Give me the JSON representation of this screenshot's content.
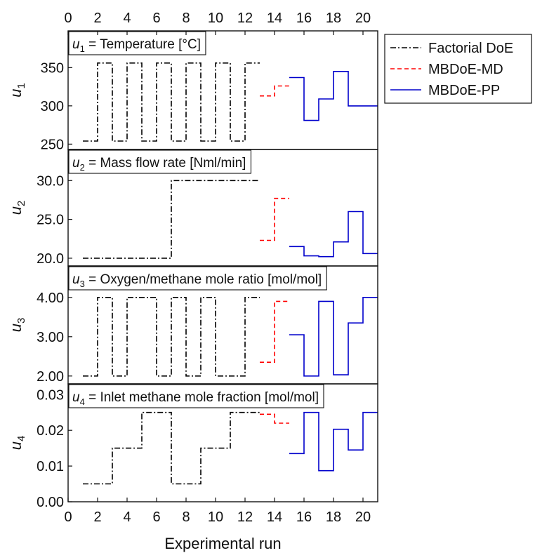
{
  "chart_data": {
    "type": "line",
    "step": "post",
    "xlabel": "Experimental run",
    "xlim": [
      0,
      21
    ],
    "xticks": [
      0,
      2,
      4,
      6,
      8,
      10,
      12,
      14,
      16,
      18,
      20
    ],
    "legend": {
      "placement": "outside-top-right",
      "entries": [
        {
          "name": "Factorial DoE",
          "color": "#000000",
          "dash": "dashdot"
        },
        {
          "name": "MBDoE-MD",
          "color": "#ff0000",
          "dash": "dashed"
        },
        {
          "name": "MBDoE-PP",
          "color": "#0000cc",
          "dash": "solid"
        }
      ]
    },
    "panels": [
      {
        "id": "u1",
        "title_var": "u",
        "title_sub": "1",
        "title_rest": " = Temperature [°C]",
        "ylabel": "u",
        "ylabel_sub": "1",
        "ylim": [
          243,
          398
        ],
        "yticks": [
          250,
          300,
          350
        ],
        "ytick_labels": [
          "250",
          "300",
          "350"
        ],
        "series": [
          {
            "name": "Factorial DoE",
            "x": [
              1,
              2,
              3,
              4,
              5,
              6,
              7,
              8,
              9,
              10,
              11,
              12,
              13
            ],
            "y": [
              254,
              356,
              254,
              356,
              254,
              356,
              254,
              356,
              254,
              356,
              254,
              356,
              356
            ]
          },
          {
            "name": "MBDoE-MD",
            "x": [
              13,
              14,
              15
            ],
            "y": [
              313,
              326,
              326
            ]
          },
          {
            "name": "MBDoE-PP",
            "x": [
              15,
              16,
              17,
              18,
              19,
              20,
              21
            ],
            "y": [
              337,
              281,
              309,
              345,
              300,
              300,
              300
            ]
          }
        ]
      },
      {
        "id": "u2",
        "title_var": "u",
        "title_sub": "2",
        "title_rest": " = Mass flow rate [Nml/min]",
        "ylabel": "u",
        "ylabel_sub": "2",
        "ylim": [
          19.0,
          34.0
        ],
        "yticks": [
          20,
          25,
          30
        ],
        "ytick_labels": [
          "20.0",
          "25.0",
          "30.0"
        ],
        "series": [
          {
            "name": "Factorial DoE",
            "x": [
              1,
              7,
              13
            ],
            "y": [
              20,
              30,
              30
            ]
          },
          {
            "name": "MBDoE-MD",
            "x": [
              13,
              14,
              15
            ],
            "y": [
              22.3,
              27.7,
              27.7
            ]
          },
          {
            "name": "MBDoE-PP",
            "x": [
              15,
              16,
              17,
              18,
              19,
              20,
              21
            ],
            "y": [
              21.5,
              20.3,
              20.2,
              22.1,
              26.0,
              20.6,
              20.6
            ]
          }
        ]
      },
      {
        "id": "u3",
        "title_var": "u",
        "title_sub": "3",
        "title_rest": " = Oxygen/methane mole ratio [mol/mol]",
        "ylabel": "u",
        "ylabel_sub": "3",
        "ylim": [
          1.8,
          4.8
        ],
        "yticks": [
          2,
          3,
          4
        ],
        "ytick_labels": [
          "2.00",
          "3.00",
          "4.00"
        ],
        "series": [
          {
            "name": "Factorial DoE",
            "x": [
              1,
              2,
              3,
              4,
              6,
              7,
              8,
              9,
              10,
              12,
              13
            ],
            "y": [
              2,
              4,
              2,
              4,
              2,
              4,
              2,
              4,
              2,
              4,
              4
            ]
          },
          {
            "name": "MBDoE-MD",
            "x": [
              13,
              14,
              15
            ],
            "y": [
              2.35,
              3.9,
              3.9
            ]
          },
          {
            "name": "MBDoE-PP",
            "x": [
              15,
              16,
              17,
              18,
              19,
              20,
              21
            ],
            "y": [
              3.05,
              2.0,
              3.9,
              2.03,
              3.35,
              4.0,
              4.0
            ]
          }
        ]
      },
      {
        "id": "u4",
        "title_var": "u",
        "title_sub": "4",
        "title_rest": " = Inlet methane mole fraction [mol/mol]",
        "ylabel": "u",
        "ylabel_sub": "4",
        "ylim": [
          0.0,
          0.033
        ],
        "yticks": [
          0,
          0.01,
          0.02,
          0.03
        ],
        "ytick_labels": [
          "0.00",
          "0.01",
          "0.02",
          "0.03"
        ],
        "series": [
          {
            "name": "Factorial DoE",
            "x": [
              1,
              3,
              5,
              7,
              9,
              11,
              13
            ],
            "y": [
              0.005,
              0.015,
              0.025,
              0.005,
              0.015,
              0.025,
              0.025
            ]
          },
          {
            "name": "MBDoE-MD",
            "x": [
              13,
              14,
              15
            ],
            "y": [
              0.0245,
              0.022,
              0.022
            ]
          },
          {
            "name": "MBDoE-PP",
            "x": [
              15,
              16,
              17,
              18,
              19,
              20,
              21
            ],
            "y": [
              0.0135,
              0.025,
              0.0087,
              0.0203,
              0.0145,
              0.025,
              0.025
            ]
          }
        ]
      }
    ]
  }
}
